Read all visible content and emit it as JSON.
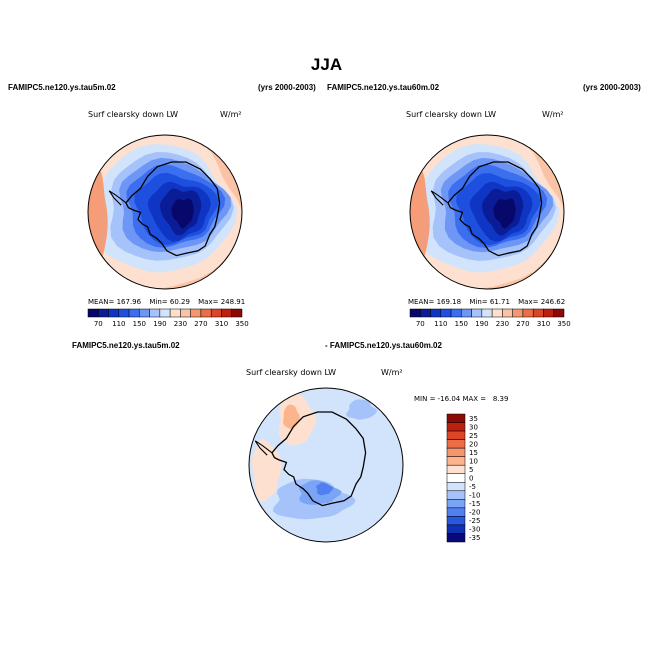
{
  "title": "JJA",
  "panels": [
    {
      "case_label": "FAMIPC5.ne120.ys.tau5m.02",
      "years": "(yrs 2000-2003)",
      "variable": "Surf clearsky down LW",
      "units": "W/m²",
      "stats": {
        "mean_label": "MEAN=",
        "mean": "167.96",
        "min_label": "Min=",
        "min": "60.29",
        "max_label": "Max=",
        "max": "248.91"
      },
      "colorbar_ticks": [
        "70",
        "110",
        "150",
        "190",
        "230",
        "270",
        "310",
        "350"
      ]
    },
    {
      "case_label": "FAMIPC5.ne120.ys.tau60m.02",
      "years": "(yrs 2000-2003)",
      "variable": "Surf clearsky down LW",
      "units": "W/m²",
      "stats": {
        "mean_label": "MEAN=",
        "mean": "169.18",
        "min_label": "Min=",
        "min": "61.71",
        "max_label": "Max=",
        "max": "246.62"
      },
      "colorbar_ticks": [
        "70",
        "110",
        "150",
        "190",
        "230",
        "270",
        "310",
        "350"
      ]
    },
    {
      "case_label_left": "FAMIPC5.ne120.ys.tau5m.02",
      "case_label_right": "- FAMIPC5.ne120.ys.tau60m.02",
      "variable": "Surf clearsky down LW",
      "units": "W/m²",
      "minmax": "MIN = -16.04 MAX =   8.39",
      "colorbar_ticks": [
        "35",
        "30",
        "25",
        "20",
        "15",
        "10",
        "5",
        "0",
        "-5",
        "-10",
        "-15",
        "-20",
        "-25",
        "-30",
        "-35"
      ]
    }
  ],
  "chart_data": [
    {
      "type": "heatmap",
      "title": "FAMIPC5.ne120.ys.tau5m.02",
      "variable": "Surf clearsky down LW",
      "units": "W/m2",
      "projection": "south polar stereographic",
      "mean": 167.96,
      "min": 60.29,
      "max": 248.91,
      "contour_levels": [
        70,
        90,
        110,
        130,
        150,
        170,
        190,
        210,
        230,
        250,
        270,
        290,
        310,
        330,
        350
      ],
      "colorbar_ticks": [
        70,
        110,
        150,
        190,
        230,
        270,
        310,
        350
      ]
    },
    {
      "type": "heatmap",
      "title": "FAMIPC5.ne120.ys.tau60m.02",
      "variable": "Surf clearsky down LW",
      "units": "W/m2",
      "projection": "south polar stereographic",
      "mean": 169.18,
      "min": 61.71,
      "max": 246.62,
      "contour_levels": [
        70,
        90,
        110,
        130,
        150,
        170,
        190,
        210,
        230,
        250,
        270,
        290,
        310,
        330,
        350
      ],
      "colorbar_ticks": [
        70,
        110,
        150,
        190,
        230,
        270,
        310,
        350
      ]
    },
    {
      "type": "heatmap",
      "title": "FAMIPC5.ne120.ys.tau5m.02 - FAMIPC5.ne120.ys.tau60m.02",
      "variable": "Surf clearsky down LW",
      "units": "W/m2",
      "projection": "south polar stereographic",
      "min": -16.04,
      "max": 8.39,
      "contour_levels": [
        -35,
        -30,
        -25,
        -20,
        -15,
        -10,
        -5,
        0,
        5,
        10,
        15,
        20,
        25,
        30,
        35
      ],
      "colorbar_ticks": [
        35,
        30,
        25,
        20,
        15,
        10,
        5,
        0,
        -5,
        -10,
        -15,
        -20,
        -25,
        -30,
        -35
      ]
    }
  ],
  "colors": {
    "abs_palette": [
      "#08086b",
      "#0a1c96",
      "#0f35c4",
      "#1e50e0",
      "#3c6ef0",
      "#6e96f5",
      "#a5c3fa",
      "#d2e4fc",
      "#fde0d0",
      "#fbc3a5",
      "#f5966e",
      "#eb6e46",
      "#dc4628",
      "#be2010",
      "#8b0a05"
    ],
    "diff_palette": [
      "#8b0a05",
      "#be2010",
      "#dc4628",
      "#eb6e46",
      "#f5966e",
      "#fbb48c",
      "#fde0d0",
      "#ffffff",
      "#d2e4fc",
      "#a5c3fa",
      "#7aa5f5",
      "#4f7ff0",
      "#2857e0",
      "#1030b4",
      "#080878"
    ]
  }
}
